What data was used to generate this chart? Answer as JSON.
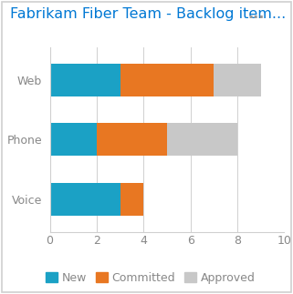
{
  "title_text": "Fabrikam Fiber Team - Backlog item...",
  "title_dots": "...",
  "categories": [
    "Voice",
    "Phone",
    "Web"
  ],
  "new_values": [
    3,
    2,
    3
  ],
  "committed_values": [
    1,
    3,
    4
  ],
  "approved_values": [
    0,
    3,
    2
  ],
  "color_new": "#1BA1C5",
  "color_committed": "#E87722",
  "color_approved": "#C8C8C8",
  "legend_labels": [
    "New",
    "Committed",
    "Approved"
  ],
  "xlim": [
    0,
    10
  ],
  "xticks": [
    0,
    2,
    4,
    6,
    8,
    10
  ],
  "background_color": "#FFFFFF",
  "border_color": "#D0D0D0",
  "title_color": "#0078D4",
  "dots_color": "#999999",
  "axis_label_color": "#888888",
  "bar_height": 0.55,
  "title_fontsize": 11.5,
  "axis_fontsize": 9,
  "legend_fontsize": 9
}
